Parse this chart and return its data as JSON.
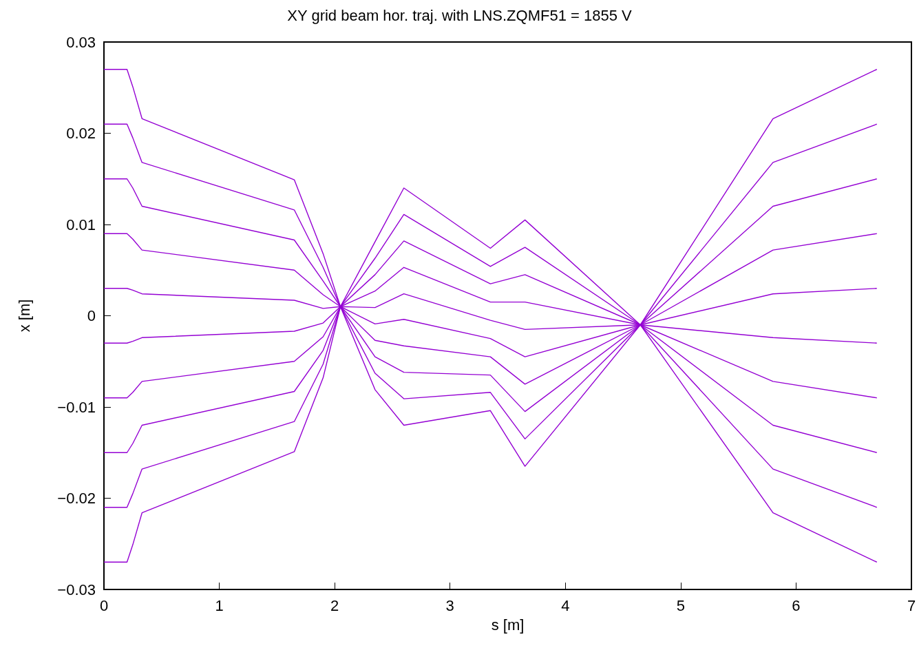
{
  "chart_data": {
    "type": "line",
    "title": "XY grid beam hor. traj. with LNS.ZQMF51 = 1855 V",
    "xlabel": "s [m]",
    "ylabel": "x [m]",
    "x": [
      0,
      0.2,
      0.25,
      0.33,
      1.65,
      1.9,
      2.05,
      2.35,
      2.6,
      3.35,
      3.65,
      4.65,
      5.8,
      6.7
    ],
    "xlim": [
      0,
      7
    ],
    "xticks": [
      0,
      1,
      2,
      3,
      4,
      5,
      6,
      7
    ],
    "ylim": [
      -0.03,
      0.03
    ],
    "yticks": [
      {
        "value": -0.03,
        "label": "−0.03"
      },
      {
        "value": -0.02,
        "label": "−0.02"
      },
      {
        "value": -0.01,
        "label": "−0.01"
      },
      0,
      0.01,
      0.02,
      0.03
    ],
    "grid": false,
    "marker": "none",
    "line_style": "solid",
    "series": [
      {
        "color": "#9400d3",
        "values": [
          0.027,
          0.027,
          0.0251,
          0.0216,
          0.0149,
          0.0068,
          0.001,
          -0.0081,
          -0.012,
          -0.0104,
          -0.0165,
          -0.001,
          0.0216,
          0.027
        ]
      },
      {
        "color": "#9400d3",
        "values": [
          0.021,
          0.021,
          0.0195,
          0.0168,
          0.0116,
          0.0053,
          0.001,
          -0.0063,
          -0.0091,
          -0.0084,
          -0.0135,
          -0.001,
          0.0168,
          0.021
        ]
      },
      {
        "color": "#9400d3",
        "values": [
          0.015,
          0.015,
          0.014,
          0.012,
          0.0083,
          0.0038,
          0.001,
          -0.0045,
          -0.0062,
          -0.0065,
          -0.0105,
          -0.001,
          0.012,
          0.015
        ]
      },
      {
        "color": "#9400d3",
        "values": [
          0.009,
          0.009,
          0.0084,
          0.0072,
          0.005,
          0.0023,
          0.001,
          -0.0027,
          -0.0033,
          -0.0045,
          -0.0075,
          -0.001,
          0.0072,
          0.009
        ]
      },
      {
        "color": "#9400d3",
        "values": [
          0.003,
          0.003,
          0.0028,
          0.0024,
          0.0017,
          0.0008,
          0.001,
          -0.0009,
          -0.0004,
          -0.0025,
          -0.0045,
          -0.001,
          0.0024,
          0.003
        ]
      },
      {
        "color": "#9400d3",
        "values": [
          -0.003,
          -0.003,
          -0.0028,
          -0.0024,
          -0.0017,
          -0.0008,
          0.001,
          0.0009,
          0.0024,
          -0.0005,
          -0.0015,
          -0.001,
          -0.0024,
          -0.003
        ]
      },
      {
        "color": "#9400d3",
        "values": [
          -0.009,
          -0.009,
          -0.0084,
          -0.0072,
          -0.005,
          -0.0023,
          0.001,
          0.0027,
          0.0053,
          0.0015,
          0.0015,
          -0.001,
          -0.0072,
          -0.009
        ]
      },
      {
        "color": "#9400d3",
        "values": [
          -0.015,
          -0.015,
          -0.014,
          -0.012,
          -0.0083,
          -0.0038,
          0.001,
          0.0045,
          0.0082,
          0.0035,
          0.0045,
          -0.001,
          -0.012,
          -0.015
        ]
      },
      {
        "color": "#9400d3",
        "values": [
          -0.021,
          -0.021,
          -0.0195,
          -0.0168,
          -0.0116,
          -0.0053,
          0.001,
          0.0063,
          0.0111,
          0.0054,
          0.0075,
          -0.001,
          -0.0168,
          -0.021
        ]
      },
      {
        "color": "#9400d3",
        "values": [
          -0.027,
          -0.027,
          -0.0251,
          -0.0216,
          -0.0149,
          -0.0068,
          0.001,
          0.0081,
          0.014,
          0.0074,
          0.0105,
          -0.001,
          -0.0216,
          -0.027
        ]
      }
    ]
  }
}
